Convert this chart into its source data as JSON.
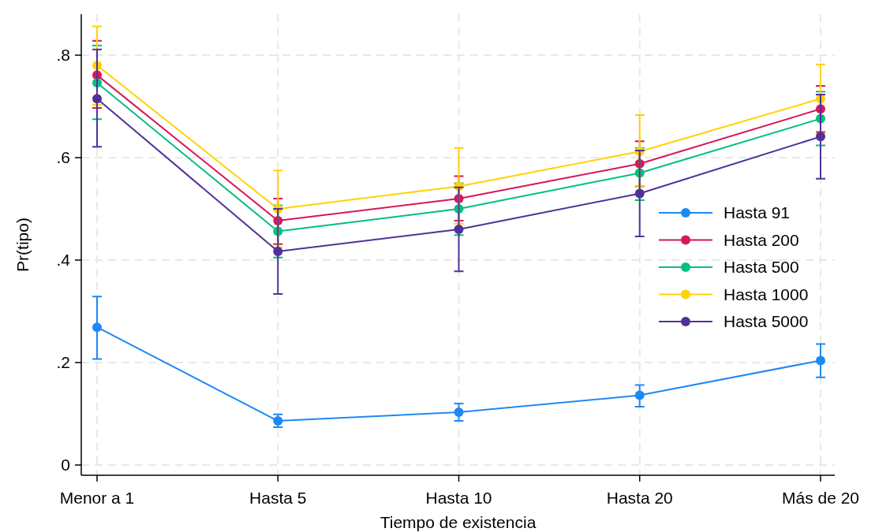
{
  "chart_data": {
    "type": "line",
    "xlabel": "Tiempo de existencia",
    "ylabel": "Pr(tipo)",
    "categories": [
      "Menor a 1",
      "Hasta 5",
      "Hasta 10",
      "Hasta 20",
      "Más de 20"
    ],
    "ylim": [
      -0.02,
      0.88
    ],
    "yticks": [
      {
        "value": 0,
        "label": "0"
      },
      {
        "value": 0.2,
        "label": ".2"
      },
      {
        "value": 0.4,
        "label": ".4"
      },
      {
        "value": 0.6,
        "label": ".6"
      },
      {
        "value": 0.8,
        "label": ".8"
      }
    ],
    "grid": true,
    "legend": "right",
    "marker": "circle",
    "line_style": "solid",
    "series": [
      {
        "name": "Hasta 91",
        "color": "#1e88f5",
        "values": [
          0.269,
          0.086,
          0.103,
          0.136,
          0.204
        ],
        "errors": [
          [
            0.207,
            0.329
          ],
          [
            0.074,
            0.099
          ],
          [
            0.086,
            0.12
          ],
          [
            0.114,
            0.156
          ],
          [
            0.171,
            0.236
          ]
        ]
      },
      {
        "name": "Hasta 200",
        "color": "#d6175a",
        "values": [
          0.761,
          0.477,
          0.52,
          0.588,
          0.695
        ],
        "errors": [
          [
            0.697,
            0.828
          ],
          [
            0.431,
            0.52
          ],
          [
            0.477,
            0.564
          ],
          [
            0.544,
            0.632
          ],
          [
            0.65,
            0.74
          ]
        ]
      },
      {
        "name": "Hasta 500",
        "color": "#00bf7f",
        "values": [
          0.746,
          0.456,
          0.5,
          0.57,
          0.676
        ],
        "errors": [
          [
            0.675,
            0.819
          ],
          [
            0.405,
            0.507
          ],
          [
            0.449,
            0.55
          ],
          [
            0.517,
            0.619
          ],
          [
            0.624,
            0.729
          ]
        ]
      },
      {
        "name": "Hasta 1000",
        "color": "#ffd200",
        "values": [
          0.78,
          0.5,
          0.544,
          0.612,
          0.715
        ],
        "errors": [
          [
            0.703,
            0.856
          ],
          [
            0.425,
            0.575
          ],
          [
            0.471,
            0.619
          ],
          [
            0.544,
            0.683
          ],
          [
            0.647,
            0.782
          ]
        ]
      },
      {
        "name": "Hasta 5000",
        "color": "#52309a",
        "values": [
          0.715,
          0.417,
          0.46,
          0.53,
          0.641
        ],
        "errors": [
          [
            0.621,
            0.811
          ],
          [
            0.334,
            0.5
          ],
          [
            0.378,
            0.542
          ],
          [
            0.446,
            0.614
          ],
          [
            0.559,
            0.723
          ]
        ]
      }
    ]
  }
}
